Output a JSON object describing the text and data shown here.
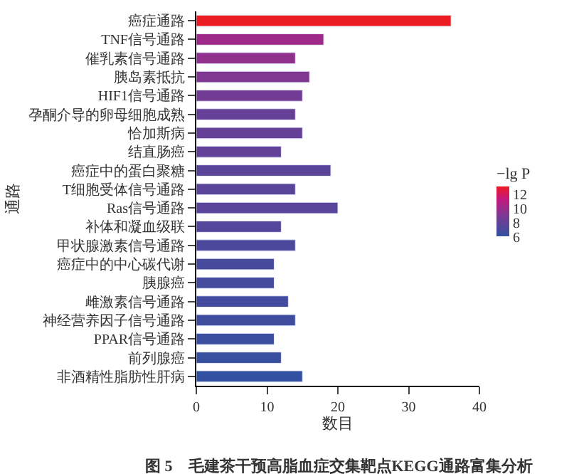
{
  "chart_data": {
    "type": "bar",
    "orientation": "horizontal",
    "categories": [
      "癌症通路",
      "TNF信号通路",
      "催乳素信号通路",
      "胰岛素抵抗",
      "HIF1信号通路",
      "孕酮介导的卵母细胞成熟",
      "恰加斯病",
      "结直肠癌",
      "癌症中的蛋白聚糖",
      "T细胞受体信号通路",
      "Ras信号通路",
      "补体和凝血级联",
      "甲状腺激素信号通路",
      "癌症中的中心碳代谢",
      "胰腺癌",
      "雌激素信号通路",
      "神经营养因子信号通路",
      "PPAR信号通路",
      "前列腺癌",
      "非酒精性脂肪性肝病"
    ],
    "values": [
      36,
      18,
      14,
      16,
      15,
      14,
      15,
      12,
      19,
      14,
      20,
      12,
      14,
      11,
      11,
      13,
      14,
      11,
      12,
      15
    ],
    "cvalues": [
      13,
      10,
      9.5,
      9,
      8.5,
      8,
      8,
      7.8,
      7.5,
      7.5,
      7.5,
      7.3,
      7,
      6.8,
      6.7,
      6.6,
      6.5,
      6.3,
      6.2,
      6
    ],
    "clim": [
      6,
      13
    ],
    "cticks": [
      6,
      8,
      10,
      12
    ],
    "clabel": "−lg P",
    "xlim": [
      0,
      40
    ],
    "xticks": [
      0,
      10,
      20,
      30,
      40
    ],
    "xlabel": "数目",
    "ylabel": "通路",
    "annotations": [
      "图 5　毛建茶干预高脂血症交集靶点KEGG通路富集分析"
    ]
  }
}
